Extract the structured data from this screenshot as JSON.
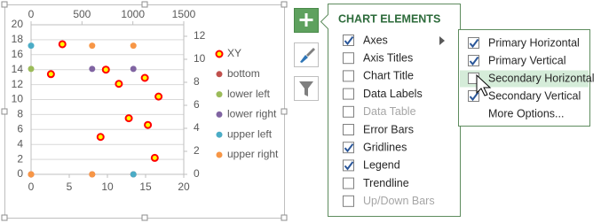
{
  "chart_data": {
    "type": "scatter",
    "xlim": [
      0,
      20
    ],
    "xticks": [
      0,
      5,
      10,
      15,
      20
    ],
    "ylim": [
      0,
      20
    ],
    "yticks": [
      0,
      2,
      4,
      6,
      8,
      10,
      12,
      14,
      16,
      18,
      20
    ],
    "x2lim": [
      0,
      1500
    ],
    "x2ticks": [
      0,
      500,
      1000,
      1500
    ],
    "y2lim": [
      0,
      13
    ],
    "y2ticks": [
      0,
      2,
      4,
      6,
      8,
      10,
      12
    ],
    "grid": true,
    "legend": "right",
    "series": [
      {
        "name": "bottom",
        "color": "#c0504d",
        "x": [
          0,
          8,
          13.4
        ],
        "values": [
          0,
          0,
          0
        ]
      },
      {
        "name": "lower left",
        "color": "#9bbb59",
        "x": [
          0
        ],
        "values": [
          14.1
        ]
      },
      {
        "name": "lower right",
        "color": "#8064a2",
        "x": [
          8,
          13.4
        ],
        "values": [
          14.1,
          14.1
        ]
      },
      {
        "name": "upper left",
        "color": "#4bacc6",
        "x": [
          0,
          13.4
        ],
        "values": [
          17.2,
          0
        ]
      },
      {
        "name": "upper right",
        "color": "#f79646",
        "x": [
          8,
          13.4,
          0,
          8
        ],
        "values": [
          17.2,
          17.2,
          0,
          0
        ]
      },
      {
        "name": "XY",
        "color": "#ff0000",
        "marker_fill": "#ffff00",
        "x": [
          4.1,
          2.6,
          9.8,
          14.9,
          11.5,
          16.7,
          12.8,
          15.3,
          9.1,
          16.2
        ],
        "values": [
          17.4,
          13.4,
          14.0,
          12.9,
          12.1,
          10.4,
          7.5,
          6.6,
          5.0,
          2.2
        ]
      }
    ],
    "legend_order": [
      5,
      0,
      1,
      2,
      3,
      4
    ]
  },
  "panel": {
    "title": "CHART ELEMENTS",
    "items": [
      {
        "label": "Axes",
        "checked": true,
        "disabled": false,
        "submenu": true
      },
      {
        "label": "Axis Titles",
        "checked": false,
        "disabled": false
      },
      {
        "label": "Chart Title",
        "checked": false,
        "disabled": false
      },
      {
        "label": "Data Labels",
        "checked": false,
        "disabled": false
      },
      {
        "label": "Data Table",
        "checked": false,
        "disabled": true
      },
      {
        "label": "Error Bars",
        "checked": false,
        "disabled": false
      },
      {
        "label": "Gridlines",
        "checked": true,
        "disabled": false
      },
      {
        "label": "Legend",
        "checked": true,
        "disabled": false
      },
      {
        "label": "Trendline",
        "checked": false,
        "disabled": false
      },
      {
        "label": "Up/Down Bars",
        "checked": false,
        "disabled": true
      }
    ]
  },
  "submenu": {
    "items": [
      {
        "label": "Primary Horizontal",
        "checked": true
      },
      {
        "label": "Primary Vertical",
        "checked": true
      },
      {
        "label": "Secondary Horizontal",
        "checked": false,
        "hover": true
      },
      {
        "label": "Secondary Vertical",
        "checked": true
      },
      {
        "label": "More Options...",
        "checkbox": false
      }
    ]
  }
}
